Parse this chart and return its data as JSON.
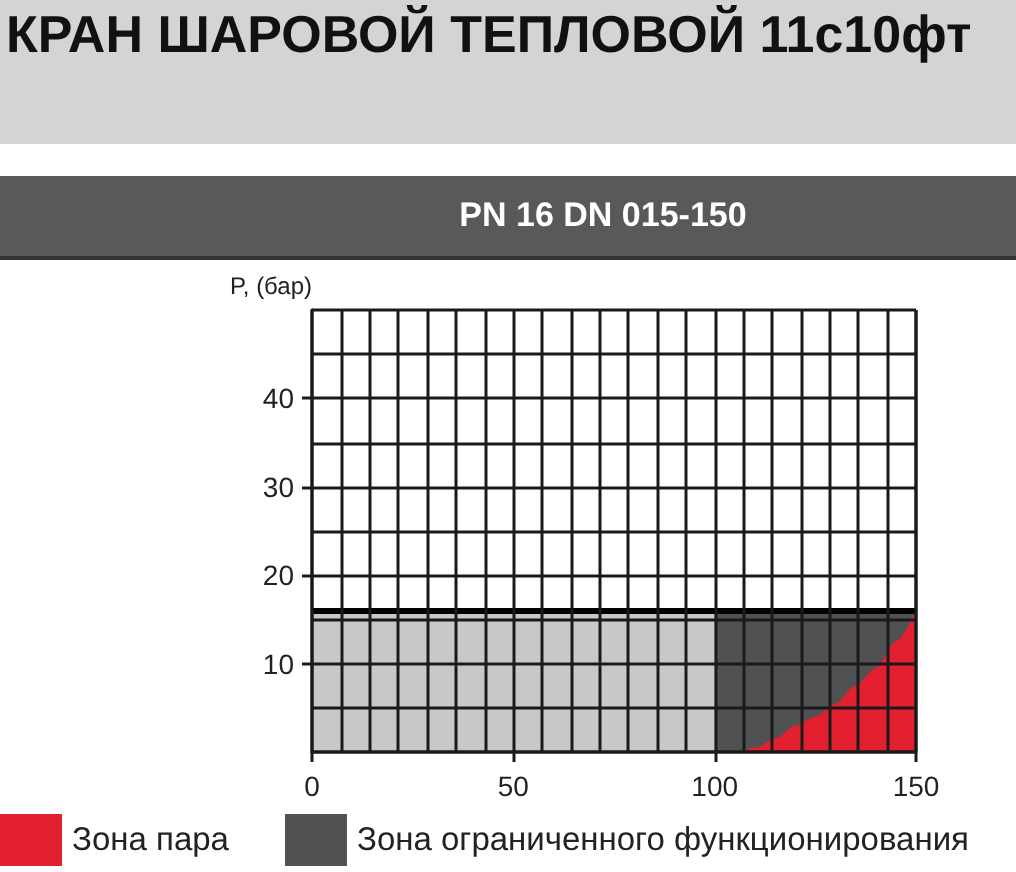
{
  "chart_data": {
    "type": "area",
    "title": "КРАН ШАРОВОЙ ТЕПЛОВОЙ 11с10фт",
    "subtitle": "PN 16 DN 015-150",
    "ylabel": "P, (бар)",
    "xlim": [
      0,
      150
    ],
    "xticks": [
      0,
      50,
      100,
      150
    ],
    "ylim": [
      0,
      50
    ],
    "yticks": [
      10,
      20,
      30,
      40
    ],
    "grid": true,
    "legend": "bottom left",
    "ref_lines": [
      {
        "axis": "y",
        "value": 16,
        "color": "#000000"
      }
    ],
    "series": [
      {
        "name": "Зона пара",
        "color": "#e2202f",
        "x": [
          106,
          110,
          115,
          120,
          125,
          130,
          135,
          140,
          145,
          150
        ],
        "values": [
          0,
          0.5,
          1.5,
          3,
          4,
          5.5,
          7.5,
          9.5,
          12.5,
          16
        ]
      },
      {
        "name": "Зона ограниченного функционирования",
        "color": "#4f5153",
        "x": [
          100,
          150
        ],
        "values": [
          16,
          16
        ]
      },
      {
        "color": "#c8c8c8",
        "x": [
          0,
          100
        ],
        "values": [
          16,
          16
        ]
      }
    ]
  }
}
